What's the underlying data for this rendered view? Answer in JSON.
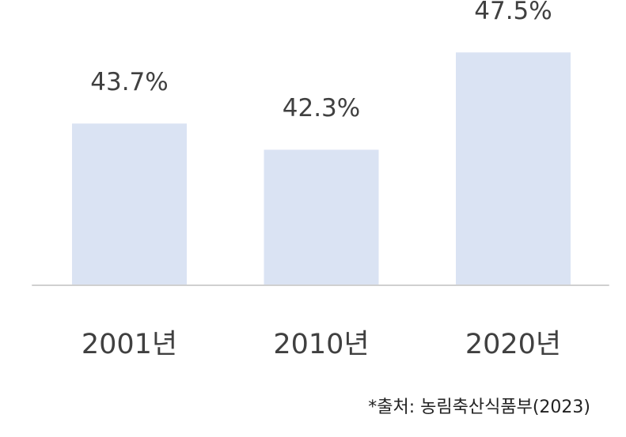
{
  "chart_data": {
    "type": "bar",
    "categories": [
      "2001년",
      "2010년",
      "2020년"
    ],
    "values": [
      43.7,
      42.3,
      47.5
    ],
    "value_labels": [
      "43.7%",
      "42.3%",
      "47.5%"
    ],
    "color": "#dae3f3",
    "ylim": [
      35.1,
      50.3
    ],
    "source": "*출처: 농림축산식품부(2023)"
  }
}
